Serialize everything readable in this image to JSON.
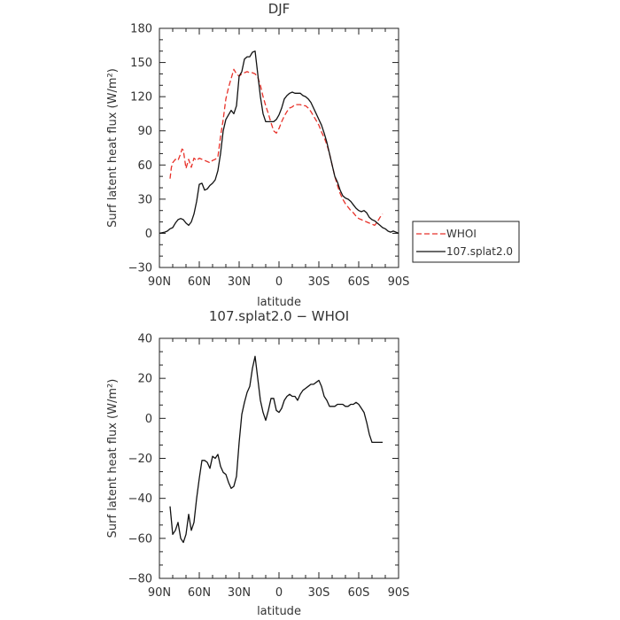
{
  "chart_data": [
    {
      "type": "line",
      "title": "DJF",
      "xlabel": "latitude",
      "ylabel": "Surf latent heat flux (W/m²)",
      "xlim": [
        90,
        -90
      ],
      "ylim": [
        -30,
        180
      ],
      "xticks": [
        90,
        60,
        30,
        0,
        -30,
        -60,
        -90
      ],
      "xtick_labels": [
        "90N",
        "60N",
        "30N",
        "0",
        "30S",
        "60S",
        "90S"
      ],
      "yticks": [
        -30,
        0,
        30,
        60,
        90,
        120,
        150,
        180
      ],
      "ytick_labels": [
        "−30",
        "0",
        "30",
        "60",
        "90",
        "120",
        "150",
        "180"
      ],
      "legend": {
        "position": "right",
        "entries": [
          "WHOI",
          "107.splat2.0"
        ]
      },
      "series": [
        {
          "name": "WHOI",
          "color": "#e8322a",
          "dash": "dashed",
          "x": [
            82,
            81,
            80,
            78,
            76,
            74,
            73,
            72,
            70,
            68,
            66,
            64,
            62,
            60,
            58,
            56,
            54,
            52,
            50,
            48,
            46,
            44,
            42,
            40,
            38,
            36,
            34,
            32,
            30,
            28,
            26,
            24,
            22,
            20,
            18,
            16,
            14,
            12,
            10,
            8,
            6,
            4,
            2,
            0,
            -2,
            -4,
            -6,
            -8,
            -10,
            -12,
            -14,
            -16,
            -18,
            -20,
            -22,
            -24,
            -26,
            -28,
            -30,
            -32,
            -34,
            -36,
            -38,
            -40,
            -42,
            -44,
            -46,
            -48,
            -50,
            -52,
            -54,
            -56,
            -58,
            -60,
            -62,
            -64,
            -66,
            -68,
            -70,
            -72,
            -74,
            -76,
            -78
          ],
          "y": [
            48,
            58,
            62,
            65,
            64,
            70,
            74,
            73,
            57,
            65,
            58,
            66,
            64,
            66,
            65,
            64,
            63,
            62,
            64,
            65,
            67,
            85,
            100,
            118,
            128,
            136,
            144,
            140,
            138,
            140,
            141,
            142,
            141,
            141,
            140,
            137,
            130,
            120,
            112,
            105,
            97,
            90,
            88,
            92,
            98,
            103,
            107,
            110,
            111,
            113,
            113,
            113,
            112,
            112,
            110,
            107,
            103,
            99,
            95,
            89,
            84,
            78,
            70,
            60,
            50,
            42,
            35,
            30,
            26,
            23,
            20,
            18,
            15,
            13,
            12,
            11,
            10,
            9,
            8,
            7,
            10,
            14,
            17
          ]
        },
        {
          "name": "107.splat2.0",
          "color": "#111111",
          "dash": "solid",
          "x": [
            90,
            86,
            84,
            82,
            80,
            78,
            76,
            74,
            72,
            70,
            68,
            66,
            64,
            62,
            60,
            58,
            56,
            54,
            52,
            50,
            48,
            46,
            44,
            42,
            40,
            38,
            36,
            34,
            32,
            30,
            28,
            26,
            24,
            22,
            20,
            18,
            16,
            14,
            12,
            10,
            8,
            6,
            4,
            2,
            0,
            -2,
            -4,
            -6,
            -8,
            -10,
            -12,
            -14,
            -16,
            -18,
            -20,
            -22,
            -24,
            -26,
            -28,
            -30,
            -32,
            -34,
            -36,
            -38,
            -40,
            -42,
            -44,
            -46,
            -48,
            -50,
            -52,
            -54,
            -56,
            -58,
            -60,
            -62,
            -64,
            -66,
            -68,
            -70,
            -72,
            -74,
            -76,
            -78,
            -80,
            -82,
            -84,
            -86,
            -88,
            -90
          ],
          "y": [
            0,
            1,
            2,
            4,
            5,
            9,
            12,
            13,
            12,
            9,
            7,
            10,
            17,
            28,
            43,
            44,
            38,
            39,
            42,
            44,
            47,
            55,
            70,
            90,
            100,
            104,
            108,
            105,
            112,
            138,
            142,
            153,
            155,
            155,
            159,
            160,
            140,
            120,
            105,
            98,
            98,
            98,
            98,
            100,
            104,
            110,
            118,
            121,
            123,
            124,
            123,
            123,
            123,
            121,
            120,
            118,
            115,
            110,
            105,
            100,
            95,
            88,
            80,
            70,
            60,
            50,
            45,
            38,
            33,
            31,
            30,
            28,
            25,
            22,
            20,
            19,
            20,
            18,
            14,
            12,
            11,
            9,
            7,
            5,
            4,
            2,
            1,
            2,
            1,
            0
          ]
        }
      ]
    },
    {
      "type": "line",
      "title": "107.splat2.0 − WHOI",
      "xlabel": "latitude",
      "ylabel": "Surf latent heat flux (W/m²)",
      "xlim": [
        90,
        -90
      ],
      "ylim": [
        -80,
        40
      ],
      "xticks": [
        90,
        60,
        30,
        0,
        -30,
        -60,
        -90
      ],
      "xtick_labels": [
        "90N",
        "60N",
        "30N",
        "0",
        "30S",
        "60S",
        "90S"
      ],
      "yticks": [
        -80,
        -60,
        -40,
        -20,
        0,
        20,
        40
      ],
      "ytick_labels": [
        "−80",
        "−60",
        "−40",
        "−20",
        "0",
        "20",
        "40"
      ],
      "series": [
        {
          "color": "#111111",
          "dash": "solid",
          "x": [
            82,
            80,
            78,
            76,
            74,
            72,
            70,
            68,
            66,
            64,
            62,
            60,
            58,
            56,
            54,
            52,
            50,
            48,
            46,
            44,
            42,
            40,
            38,
            36,
            34,
            32,
            30,
            28,
            26,
            24,
            22,
            20,
            18,
            16,
            14,
            12,
            10,
            8,
            6,
            4,
            2,
            0,
            -2,
            -4,
            -6,
            -8,
            -10,
            -12,
            -14,
            -16,
            -18,
            -20,
            -22,
            -24,
            -26,
            -28,
            -30,
            -32,
            -34,
            -36,
            -38,
            -40,
            -42,
            -44,
            -46,
            -48,
            -50,
            -52,
            -54,
            -56,
            -58,
            -60,
            -62,
            -64,
            -66,
            -68,
            -70,
            -72,
            -74,
            -76,
            -78
          ],
          "y": [
            -44,
            -58,
            -56,
            -52,
            -60,
            -62,
            -58,
            -48,
            -56,
            -52,
            -40,
            -30,
            -21,
            -21,
            -22,
            -25,
            -19,
            -20,
            -18,
            -24,
            -27,
            -28,
            -32,
            -35,
            -34,
            -29,
            -12,
            2,
            8,
            13,
            16,
            25,
            31,
            20,
            9,
            3,
            -1,
            4,
            10,
            10,
            4,
            3,
            5,
            9,
            11,
            12,
            11,
            11,
            9,
            12,
            14,
            15,
            16,
            17,
            17,
            18,
            19,
            16,
            11,
            9,
            6,
            6,
            6,
            7,
            7,
            7,
            6,
            6,
            7,
            7,
            8,
            7,
            5,
            3,
            -2,
            -8,
            -12,
            -12,
            -12,
            -12,
            -12
          ]
        }
      ]
    }
  ]
}
